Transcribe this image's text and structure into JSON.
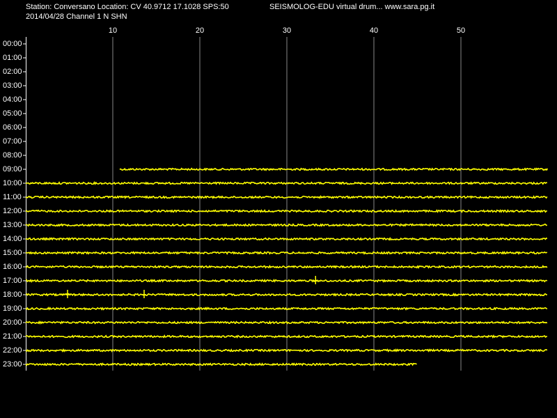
{
  "chart_data": {
    "type": "helicorder",
    "title": "Station: Conversano Location: CV 40.9712 17.1028 SPS:50",
    "subtitle": "2014/04/28  Channel 1 N SHN",
    "annotation": "SEISMOLOG-EDU virtual drum... www.sara.pg.it",
    "color": "#ffff00",
    "categories": [
      "00:00",
      "01:00",
      "02:00",
      "03:00",
      "04:00",
      "05:00",
      "06:00",
      "07:00",
      "08:00",
      "09:00",
      "10:00",
      "11:00",
      "12:00",
      "13:00",
      "14:00",
      "15:00",
      "16:00",
      "17:00",
      "18:00",
      "19:00",
      "20:00",
      "21:00",
      "22:00",
      "23:00"
    ],
    "start": [
      null,
      null,
      null,
      null,
      null,
      null,
      null,
      null,
      null,
      10.8,
      0,
      0,
      0,
      0,
      0,
      0,
      0,
      0,
      0,
      0,
      0,
      0,
      0,
      0
    ],
    "end": [
      null,
      null,
      null,
      null,
      null,
      null,
      null,
      null,
      null,
      60,
      60,
      60,
      60,
      60,
      60,
      60,
      60,
      60,
      60,
      60,
      60,
      60,
      60,
      45
    ],
    "events": [
      [],
      [],
      [],
      [],
      [],
      [],
      [],
      [],
      [],
      [],
      [],
      [],
      [],
      [],
      [],
      [],
      [],
      [
        33.3
      ],
      [
        4.8,
        13.6
      ],
      [],
      [],
      [],
      [],
      []
    ],
    "xlim": [
      0,
      60
    ],
    "xticks": [
      10,
      20,
      30,
      40,
      50
    ],
    "grid": true
  }
}
